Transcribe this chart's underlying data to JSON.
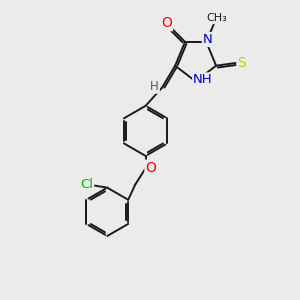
{
  "background_color": "#ebebeb",
  "bond_color": "#1a1a1a",
  "atom_colors": {
    "O": "#ff0000",
    "N": "#0000cc",
    "S": "#cccc00",
    "Cl": "#00bb00",
    "C": "#1a1a1a",
    "H": "#555555"
  },
  "lw": 1.4,
  "font_size": 8.5
}
